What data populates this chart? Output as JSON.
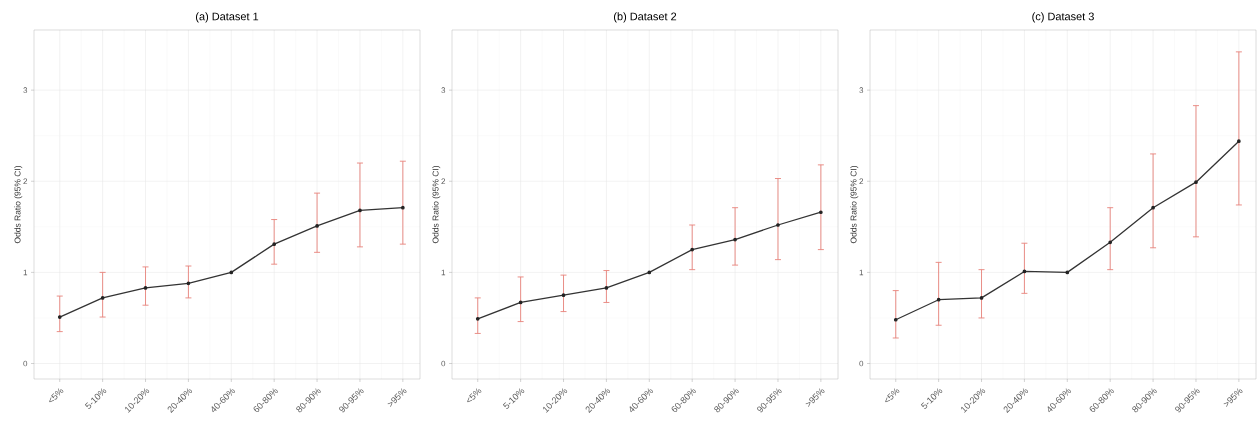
{
  "chart_data": [
    {
      "type": "line",
      "title": "(a) Dataset 1",
      "ylabel": "Odds Ratio (95% CI)",
      "categories": [
        "<5%",
        "5-10%",
        "10-20%",
        "20-40%",
        "40-60%",
        "60-80%",
        "80-90%",
        "90-95%",
        ">95%"
      ],
      "ylim": [
        -0.17,
        3.66
      ],
      "yticks": [
        0,
        1,
        2,
        3
      ],
      "grid": true,
      "marker": "circle",
      "line_style": "solid",
      "series": [
        {
          "color": "#333333",
          "values": [
            0.51,
            0.72,
            0.83,
            0.88,
            1.0,
            1.31,
            1.51,
            1.68,
            1.71
          ],
          "errors": [
            [
              0.35,
              0.74
            ],
            [
              0.51,
              1.0
            ],
            [
              0.64,
              1.06
            ],
            [
              0.72,
              1.07
            ],
            null,
            [
              1.09,
              1.58
            ],
            [
              1.22,
              1.87
            ],
            [
              1.28,
              2.2
            ],
            [
              1.31,
              2.22
            ]
          ]
        }
      ]
    },
    {
      "type": "line",
      "title": "(b) Dataset 2",
      "ylabel": "Odds Ratio (95% CI)",
      "categories": [
        "<5%",
        "5-10%",
        "10-20%",
        "20-40%",
        "40-60%",
        "60-80%",
        "80-90%",
        "90-95%",
        ">95%"
      ],
      "ylim": [
        -0.17,
        3.66
      ],
      "yticks": [
        0,
        1,
        2,
        3
      ],
      "grid": true,
      "marker": "circle",
      "line_style": "solid",
      "series": [
        {
          "color": "#333333",
          "values": [
            0.49,
            0.67,
            0.75,
            0.83,
            1.0,
            1.25,
            1.36,
            1.52,
            1.66
          ],
          "errors": [
            [
              0.33,
              0.72
            ],
            [
              0.46,
              0.95
            ],
            [
              0.57,
              0.97
            ],
            [
              0.67,
              1.02
            ],
            null,
            [
              1.03,
              1.52
            ],
            [
              1.08,
              1.71
            ],
            [
              1.14,
              2.03
            ],
            [
              1.25,
              2.18
            ]
          ]
        }
      ]
    },
    {
      "type": "line",
      "title": "(c) Dataset 3",
      "ylabel": "Odds Ratio (95% CI)",
      "categories": [
        "<5%",
        "5-10%",
        "10-20%",
        "20-40%",
        "40-60%",
        "60-80%",
        "80-90%",
        "90-95%",
        ">95%"
      ],
      "ylim": [
        -0.17,
        3.66
      ],
      "yticks": [
        0,
        1,
        2,
        3
      ],
      "grid": true,
      "marker": "circle",
      "line_style": "solid",
      "series": [
        {
          "color": "#333333",
          "values": [
            0.48,
            0.7,
            0.72,
            1.01,
            1.0,
            1.33,
            1.71,
            1.99,
            2.44
          ],
          "errors": [
            [
              0.28,
              0.8
            ],
            [
              0.42,
              1.11
            ],
            [
              0.5,
              1.03
            ],
            [
              0.77,
              1.32
            ],
            null,
            [
              1.03,
              1.71
            ],
            [
              1.27,
              2.3
            ],
            [
              1.39,
              2.83
            ],
            [
              1.74,
              3.42
            ]
          ]
        }
      ]
    }
  ]
}
